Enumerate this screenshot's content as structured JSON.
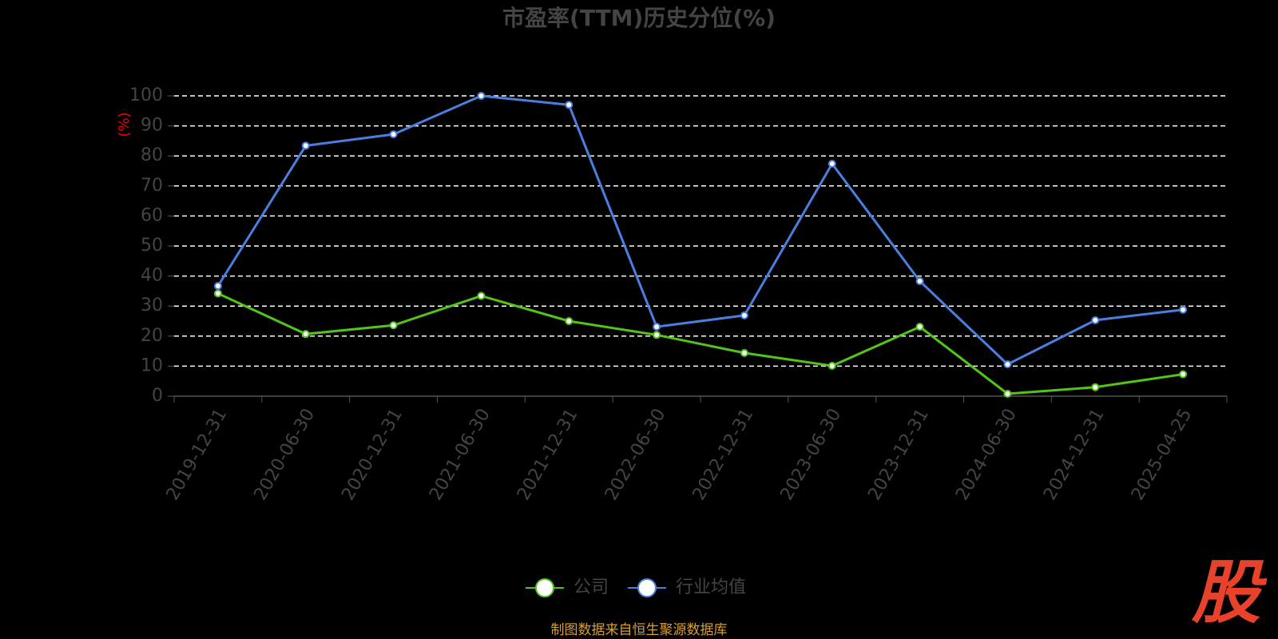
{
  "chart_data": {
    "type": "line",
    "title": "市盈率(TTM)历史分位(%)",
    "y_label": "(%)",
    "categories": [
      "2019-12-31",
      "2020-06-30",
      "2020-12-31",
      "2021-06-30",
      "2021-12-31",
      "2022-06-30",
      "2022-12-31",
      "2023-06-30",
      "2023-12-31",
      "2024-06-30",
      "2024-12-31",
      "2025-04-25"
    ],
    "series": [
      {
        "name": "公司",
        "color": "#52c41a",
        "values": [
          34.2,
          20.7,
          23.6,
          33.4,
          25.0,
          20.4,
          14.4,
          10.1,
          23.1,
          0.8,
          3.0,
          7.3
        ]
      },
      {
        "name": "行业均值",
        "color": "#4a7fe0",
        "values": [
          36.7,
          83.4,
          87.2,
          100,
          97.0,
          23.1,
          26.9,
          77.4,
          38.3,
          10.6,
          25.3,
          28.8
        ]
      }
    ],
    "ylim": [
      0,
      100
    ],
    "yticks": [
      0,
      10,
      20,
      30,
      40,
      50,
      60,
      70,
      80,
      90,
      100
    ],
    "grid": true,
    "legend": "bottom",
    "source": "制图数据来自恒生聚源数据库",
    "watermark": "股"
  }
}
